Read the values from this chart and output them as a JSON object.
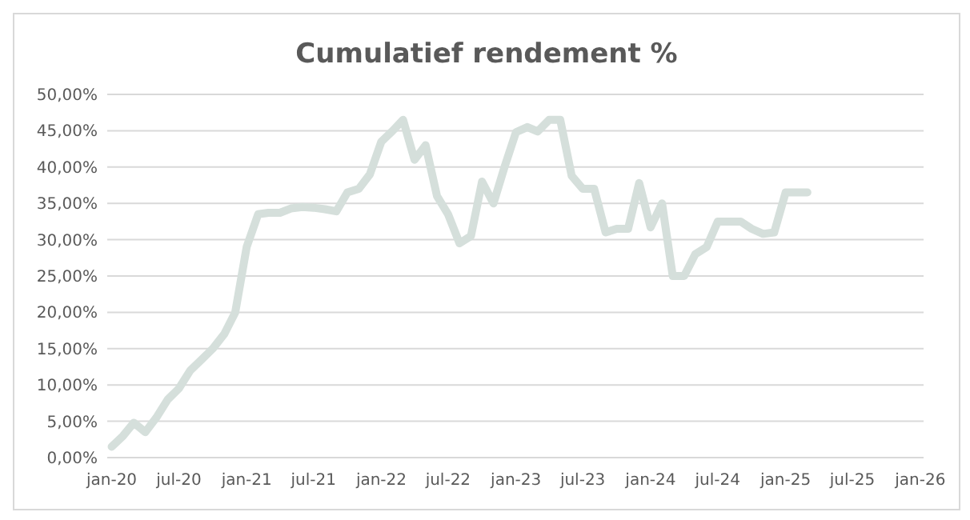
{
  "chart_data": {
    "type": "line",
    "title": "Cumulatief rendement %",
    "x": [
      "2020-01",
      "2020-02",
      "2020-03",
      "2020-04",
      "2020-05",
      "2020-06",
      "2020-07",
      "2020-08",
      "2020-09",
      "2020-10",
      "2020-11",
      "2020-12",
      "2021-01",
      "2021-02",
      "2021-03",
      "2021-04",
      "2021-05",
      "2021-06",
      "2021-07",
      "2021-08",
      "2021-09",
      "2021-10",
      "2021-11",
      "2021-12",
      "2022-01",
      "2022-02",
      "2022-03",
      "2022-04",
      "2022-05",
      "2022-06",
      "2022-07",
      "2022-08",
      "2022-09",
      "2022-10",
      "2022-11",
      "2022-12",
      "2023-01",
      "2023-02",
      "2023-03",
      "2023-04",
      "2023-05",
      "2023-06",
      "2023-07",
      "2023-08",
      "2023-09",
      "2023-10",
      "2023-11",
      "2023-12",
      "2024-01",
      "2024-02",
      "2024-03",
      "2024-04",
      "2024-05",
      "2024-06",
      "2024-07",
      "2024-08",
      "2024-09",
      "2024-10",
      "2024-11",
      "2024-12",
      "2025-01",
      "2025-02",
      "2025-03"
    ],
    "series": [
      {
        "color": "#d5dfdb",
        "values": [
          1.5,
          3,
          4.8,
          3.5,
          5.5,
          8,
          9.5,
          12,
          13.5,
          15,
          17,
          20,
          29,
          33.5,
          33.7,
          33.7,
          34.3,
          34.5,
          34.4,
          34.2,
          33.9,
          36.5,
          37,
          39,
          43.5,
          45,
          46.5,
          41,
          43,
          36,
          33.5,
          29.5,
          30.5,
          38,
          35,
          40,
          44.8,
          45.5,
          44.9,
          46.5,
          46.5,
          38.8,
          37,
          37,
          31,
          31.5,
          31.5,
          37.8,
          31.7,
          35,
          25,
          25,
          28,
          29,
          32.5,
          32.5,
          32.5,
          31.5,
          30.8,
          31,
          36.5,
          36.5,
          36.5
        ]
      }
    ],
    "xlim": [
      "2019-12-20",
      "2026-01-10"
    ],
    "xticks": [
      {
        "value": "2020-01",
        "label": "jan-20"
      },
      {
        "value": "2020-07",
        "label": "jul-20"
      },
      {
        "value": "2021-01",
        "label": "jan-21"
      },
      {
        "value": "2021-07",
        "label": "jul-21"
      },
      {
        "value": "2022-01",
        "label": "jan-22"
      },
      {
        "value": "2022-07",
        "label": "jul-22"
      },
      {
        "value": "2023-01",
        "label": "jan-23"
      },
      {
        "value": "2023-07",
        "label": "jul-23"
      },
      {
        "value": "2024-01",
        "label": "jan-24"
      },
      {
        "value": "2024-07",
        "label": "jul-24"
      },
      {
        "value": "2025-01",
        "label": "jan-25"
      },
      {
        "value": "2025-07",
        "label": "jul-25"
      },
      {
        "value": "2026-01",
        "label": "jan-26"
      }
    ],
    "ylim": [
      0,
      50
    ],
    "yticks": [
      {
        "value": 0,
        "label": "0,00%"
      },
      {
        "value": 5,
        "label": "5,00%"
      },
      {
        "value": 10,
        "label": "10,00%"
      },
      {
        "value": 15,
        "label": "15,00%"
      },
      {
        "value": 20,
        "label": "20,00%"
      },
      {
        "value": 25,
        "label": "25,00%"
      },
      {
        "value": 30,
        "label": "30,00%"
      },
      {
        "value": 35,
        "label": "35,00%"
      },
      {
        "value": 40,
        "label": "40,00%"
      },
      {
        "value": 45,
        "label": "45,00%"
      },
      {
        "value": 50,
        "label": "50,00%"
      }
    ],
    "grid": "y",
    "marker": "none",
    "line_style": "solid"
  }
}
